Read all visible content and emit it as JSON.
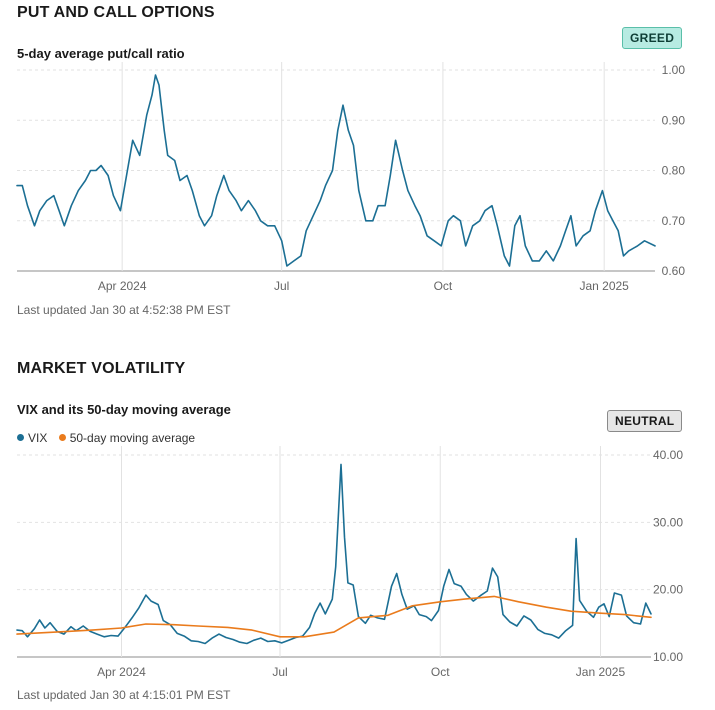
{
  "colors": {
    "vix": "#1c6f94",
    "ma": "#ea7b1c",
    "pcr": "#1c6f94",
    "grid": "#e2e2e2"
  },
  "put_call": {
    "title": "PUT AND CALL OPTIONS",
    "subtitle": "5-day average put/call ratio",
    "badge": "GREED",
    "updated": "Last updated Jan 30 at 4:52:38 PM EST"
  },
  "volatility": {
    "title": "MARKET VOLATILITY",
    "subtitle": "VIX and its 50-day moving average",
    "badge": "NEUTRAL",
    "legend": {
      "vix": "VIX",
      "ma": "50-day moving average"
    },
    "updated": "Last updated Jan 30 at 4:15:01 PM EST"
  },
  "chart_data": [
    {
      "type": "line",
      "title": "5-day average put/call ratio",
      "x_range": [
        "2024-02-01",
        "2025-01-30"
      ],
      "x_ticks": [
        {
          "date": "2024-04-01",
          "label": "Apr 2024"
        },
        {
          "date": "2024-07-01",
          "label": "Jul"
        },
        {
          "date": "2024-10-01",
          "label": "Oct"
        },
        {
          "date": "2025-01-01",
          "label": "Jan 2025"
        }
      ],
      "y_ticks": [
        "0.60",
        "0.70",
        "0.80",
        "0.90",
        "1.00"
      ],
      "ylim": [
        0.6,
        1.0
      ],
      "grid": true,
      "series": [
        {
          "name": "5-day average put/call ratio",
          "points": [
            [
              "2024-02-01",
              0.77
            ],
            [
              "2024-02-04",
              0.77
            ],
            [
              "2024-02-07",
              0.73
            ],
            [
              "2024-02-11",
              0.69
            ],
            [
              "2024-02-14",
              0.72
            ],
            [
              "2024-02-18",
              0.74
            ],
            [
              "2024-02-22",
              0.75
            ],
            [
              "2024-02-25",
              0.72
            ],
            [
              "2024-02-28",
              0.69
            ],
            [
              "2024-03-03",
              0.73
            ],
            [
              "2024-03-07",
              0.76
            ],
            [
              "2024-03-11",
              0.78
            ],
            [
              "2024-03-14",
              0.8
            ],
            [
              "2024-03-17",
              0.8
            ],
            [
              "2024-03-20",
              0.81
            ],
            [
              "2024-03-24",
              0.79
            ],
            [
              "2024-03-27",
              0.75
            ],
            [
              "2024-03-31",
              0.72
            ],
            [
              "2024-04-04",
              0.8
            ],
            [
              "2024-04-07",
              0.86
            ],
            [
              "2024-04-11",
              0.83
            ],
            [
              "2024-04-15",
              0.91
            ],
            [
              "2024-04-18",
              0.95
            ],
            [
              "2024-04-20",
              0.99
            ],
            [
              "2024-04-22",
              0.97
            ],
            [
              "2024-04-25",
              0.88
            ],
            [
              "2024-04-27",
              0.83
            ],
            [
              "2024-05-01",
              0.82
            ],
            [
              "2024-05-04",
              0.78
            ],
            [
              "2024-05-08",
              0.79
            ],
            [
              "2024-05-11",
              0.76
            ],
            [
              "2024-05-15",
              0.71
            ],
            [
              "2024-05-18",
              0.69
            ],
            [
              "2024-05-22",
              0.71
            ],
            [
              "2024-05-25",
              0.75
            ],
            [
              "2024-05-29",
              0.79
            ],
            [
              "2024-06-01",
              0.76
            ],
            [
              "2024-06-05",
              0.74
            ],
            [
              "2024-06-08",
              0.72
            ],
            [
              "2024-06-12",
              0.74
            ],
            [
              "2024-06-16",
              0.72
            ],
            [
              "2024-06-19",
              0.7
            ],
            [
              "2024-06-23",
              0.69
            ],
            [
              "2024-06-27",
              0.69
            ],
            [
              "2024-07-01",
              0.66
            ],
            [
              "2024-07-04",
              0.61
            ],
            [
              "2024-07-08",
              0.62
            ],
            [
              "2024-07-12",
              0.63
            ],
            [
              "2024-07-15",
              0.68
            ],
            [
              "2024-07-19",
              0.71
            ],
            [
              "2024-07-23",
              0.74
            ],
            [
              "2024-07-26",
              0.77
            ],
            [
              "2024-07-30",
              0.8
            ],
            [
              "2024-08-02",
              0.88
            ],
            [
              "2024-08-05",
              0.93
            ],
            [
              "2024-08-08",
              0.88
            ],
            [
              "2024-08-11",
              0.85
            ],
            [
              "2024-08-14",
              0.76
            ],
            [
              "2024-08-18",
              0.7
            ],
            [
              "2024-08-22",
              0.7
            ],
            [
              "2024-08-25",
              0.73
            ],
            [
              "2024-08-29",
              0.73
            ],
            [
              "2024-09-01",
              0.79
            ],
            [
              "2024-09-04",
              0.86
            ],
            [
              "2024-09-08",
              0.8
            ],
            [
              "2024-09-11",
              0.76
            ],
            [
              "2024-09-15",
              0.73
            ],
            [
              "2024-09-18",
              0.71
            ],
            [
              "2024-09-22",
              0.67
            ],
            [
              "2024-09-26",
              0.66
            ],
            [
              "2024-09-30",
              0.65
            ],
            [
              "2024-10-04",
              0.7
            ],
            [
              "2024-10-07",
              0.71
            ],
            [
              "2024-10-11",
              0.7
            ],
            [
              "2024-10-14",
              0.65
            ],
            [
              "2024-10-18",
              0.69
            ],
            [
              "2024-10-22",
              0.7
            ],
            [
              "2024-10-25",
              0.72
            ],
            [
              "2024-10-29",
              0.73
            ],
            [
              "2024-11-01",
              0.69
            ],
            [
              "2024-11-05",
              0.63
            ],
            [
              "2024-11-08",
              0.61
            ],
            [
              "2024-11-11",
              0.69
            ],
            [
              "2024-11-14",
              0.71
            ],
            [
              "2024-11-17",
              0.65
            ],
            [
              "2024-11-21",
              0.62
            ],
            [
              "2024-11-25",
              0.62
            ],
            [
              "2024-11-29",
              0.64
            ],
            [
              "2024-12-03",
              0.62
            ],
            [
              "2024-12-07",
              0.65
            ],
            [
              "2024-12-10",
              0.68
            ],
            [
              "2024-12-13",
              0.71
            ],
            [
              "2024-12-16",
              0.65
            ],
            [
              "2024-12-20",
              0.67
            ],
            [
              "2024-12-24",
              0.68
            ],
            [
              "2024-12-27",
              0.72
            ],
            [
              "2024-12-31",
              0.76
            ],
            [
              "2025-01-03",
              0.72
            ],
            [
              "2025-01-06",
              0.7
            ],
            [
              "2025-01-09",
              0.68
            ],
            [
              "2025-01-12",
              0.63
            ],
            [
              "2025-01-15",
              0.64
            ],
            [
              "2025-01-20",
              0.65
            ],
            [
              "2025-01-24",
              0.66
            ],
            [
              "2025-01-30",
              0.65
            ]
          ]
        }
      ]
    },
    {
      "type": "line",
      "title": "VIX and its 50-day moving average",
      "x_range": [
        "2024-02-01",
        "2025-01-30"
      ],
      "x_ticks": [
        {
          "date": "2024-04-01",
          "label": "Apr 2024"
        },
        {
          "date": "2024-07-01",
          "label": "Jul"
        },
        {
          "date": "2024-10-01",
          "label": "Oct"
        },
        {
          "date": "2025-01-01",
          "label": "Jan 2025"
        }
      ],
      "y_ticks": [
        "10.00",
        "20.00",
        "30.00",
        "40.00"
      ],
      "ylim": [
        10,
        40
      ],
      "grid": true,
      "legend": "top-left",
      "series": [
        {
          "name": "VIX",
          "points": [
            [
              "2024-02-01",
              14.0
            ],
            [
              "2024-02-04",
              13.9
            ],
            [
              "2024-02-07",
              13.0
            ],
            [
              "2024-02-11",
              14.2
            ],
            [
              "2024-02-14",
              15.5
            ],
            [
              "2024-02-17",
              14.3
            ],
            [
              "2024-02-20",
              15.1
            ],
            [
              "2024-02-24",
              13.8
            ],
            [
              "2024-02-28",
              13.4
            ],
            [
              "2024-03-03",
              14.5
            ],
            [
              "2024-03-06",
              13.9
            ],
            [
              "2024-03-10",
              14.6
            ],
            [
              "2024-03-14",
              13.8
            ],
            [
              "2024-03-18",
              13.4
            ],
            [
              "2024-03-22",
              13.0
            ],
            [
              "2024-03-26",
              13.2
            ],
            [
              "2024-03-30",
              13.1
            ],
            [
              "2024-04-03",
              14.4
            ],
            [
              "2024-04-07",
              15.8
            ],
            [
              "2024-04-11",
              17.3
            ],
            [
              "2024-04-15",
              19.2
            ],
            [
              "2024-04-18",
              18.3
            ],
            [
              "2024-04-22",
              17.8
            ],
            [
              "2024-04-25",
              15.4
            ],
            [
              "2024-04-29",
              14.8
            ],
            [
              "2024-05-03",
              13.5
            ],
            [
              "2024-05-07",
              13.1
            ],
            [
              "2024-05-11",
              12.4
            ],
            [
              "2024-05-15",
              12.3
            ],
            [
              "2024-05-19",
              12.0
            ],
            [
              "2024-05-23",
              12.8
            ],
            [
              "2024-05-27",
              13.4
            ],
            [
              "2024-05-31",
              12.9
            ],
            [
              "2024-06-04",
              12.6
            ],
            [
              "2024-06-08",
              12.2
            ],
            [
              "2024-06-12",
              12.0
            ],
            [
              "2024-06-16",
              12.5
            ],
            [
              "2024-06-20",
              12.8
            ],
            [
              "2024-06-24",
              12.3
            ],
            [
              "2024-06-28",
              12.4
            ],
            [
              "2024-07-02",
              12.1
            ],
            [
              "2024-07-06",
              12.5
            ],
            [
              "2024-07-10",
              12.9
            ],
            [
              "2024-07-14",
              13.1
            ],
            [
              "2024-07-18",
              14.4
            ],
            [
              "2024-07-21",
              16.5
            ],
            [
              "2024-07-24",
              18.0
            ],
            [
              "2024-07-27",
              16.4
            ],
            [
              "2024-07-31",
              18.6
            ],
            [
              "2024-08-02",
              23.4
            ],
            [
              "2024-08-05",
              38.6
            ],
            [
              "2024-08-07",
              27.8
            ],
            [
              "2024-08-09",
              21.0
            ],
            [
              "2024-08-12",
              20.7
            ],
            [
              "2024-08-15",
              16.0
            ],
            [
              "2024-08-19",
              15.0
            ],
            [
              "2024-08-22",
              16.2
            ],
            [
              "2024-08-26",
              15.8
            ],
            [
              "2024-08-30",
              15.6
            ],
            [
              "2024-09-03",
              20.5
            ],
            [
              "2024-09-06",
              22.4
            ],
            [
              "2024-09-09",
              19.3
            ],
            [
              "2024-09-12",
              17.1
            ],
            [
              "2024-09-16",
              17.6
            ],
            [
              "2024-09-19",
              16.3
            ],
            [
              "2024-09-23",
              16.0
            ],
            [
              "2024-09-26",
              15.4
            ],
            [
              "2024-09-30",
              16.9
            ],
            [
              "2024-10-03",
              20.5
            ],
            [
              "2024-10-06",
              23.0
            ],
            [
              "2024-10-09",
              20.9
            ],
            [
              "2024-10-13",
              20.5
            ],
            [
              "2024-10-16",
              19.3
            ],
            [
              "2024-10-20",
              18.3
            ],
            [
              "2024-10-24",
              19.1
            ],
            [
              "2024-10-28",
              19.8
            ],
            [
              "2024-10-31",
              23.2
            ],
            [
              "2024-11-03",
              21.9
            ],
            [
              "2024-11-06",
              16.3
            ],
            [
              "2024-11-10",
              15.2
            ],
            [
              "2024-11-14",
              14.6
            ],
            [
              "2024-11-18",
              16.1
            ],
            [
              "2024-11-22",
              15.5
            ],
            [
              "2024-11-26",
              14.1
            ],
            [
              "2024-11-30",
              13.5
            ],
            [
              "2024-12-04",
              13.3
            ],
            [
              "2024-12-08",
              12.8
            ],
            [
              "2024-12-12",
              13.9
            ],
            [
              "2024-12-16",
              14.7
            ],
            [
              "2024-12-18",
              27.6
            ],
            [
              "2024-12-20",
              18.4
            ],
            [
              "2024-12-24",
              16.8
            ],
            [
              "2024-12-28",
              15.9
            ],
            [
              "2024-12-31",
              17.4
            ],
            [
              "2025-01-03",
              17.9
            ],
            [
              "2025-01-06",
              16.0
            ],
            [
              "2025-01-09",
              19.5
            ],
            [
              "2025-01-13",
              19.2
            ],
            [
              "2025-01-16",
              16.1
            ],
            [
              "2025-01-20",
              15.1
            ],
            [
              "2025-01-24",
              14.9
            ],
            [
              "2025-01-27",
              18.0
            ],
            [
              "2025-01-30",
              16.4
            ]
          ]
        },
        {
          "name": "50-day moving average",
          "points": [
            [
              "2024-02-01",
              13.4
            ],
            [
              "2024-02-15",
              13.6
            ],
            [
              "2024-03-01",
              13.8
            ],
            [
              "2024-03-15",
              14.0
            ],
            [
              "2024-04-01",
              14.3
            ],
            [
              "2024-04-15",
              14.9
            ],
            [
              "2024-05-01",
              14.8
            ],
            [
              "2024-05-15",
              14.6
            ],
            [
              "2024-06-01",
              14.4
            ],
            [
              "2024-06-15",
              14.0
            ],
            [
              "2024-07-01",
              13.0
            ],
            [
              "2024-07-15",
              13.0
            ],
            [
              "2024-08-01",
              13.7
            ],
            [
              "2024-08-15",
              15.8
            ],
            [
              "2024-09-01",
              16.2
            ],
            [
              "2024-09-15",
              17.6
            ],
            [
              "2024-10-01",
              18.2
            ],
            [
              "2024-10-15",
              18.6
            ],
            [
              "2024-11-01",
              19.0
            ],
            [
              "2024-11-15",
              18.2
            ],
            [
              "2024-12-01",
              17.4
            ],
            [
              "2024-12-15",
              16.8
            ],
            [
              "2025-01-01",
              16.5
            ],
            [
              "2025-01-15",
              16.3
            ],
            [
              "2025-01-30",
              15.9
            ]
          ]
        }
      ]
    }
  ]
}
